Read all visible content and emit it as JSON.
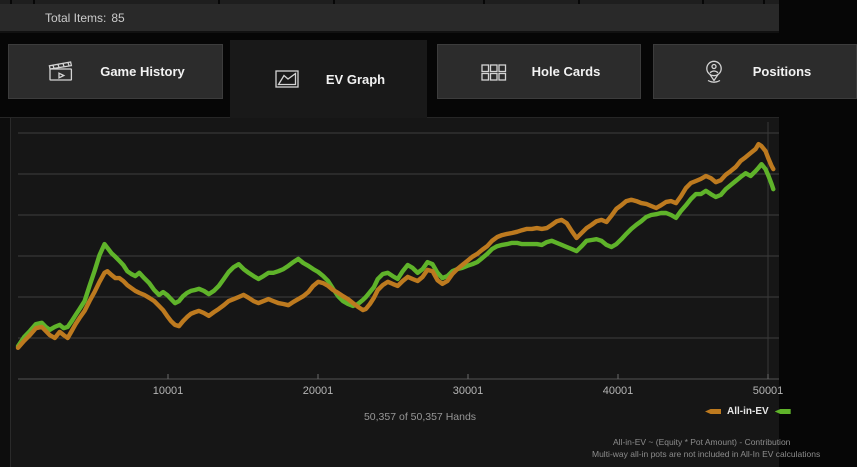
{
  "header": {
    "total_items_label": "Total Items:",
    "total_items_value": "85"
  },
  "tabs": [
    {
      "label": "Game History",
      "icon": "clapperboard-icon",
      "active": false
    },
    {
      "label": "EV Graph",
      "icon": "line-chart-icon",
      "active": true
    },
    {
      "label": "Hole Cards",
      "icon": "cards-grid-icon",
      "active": false
    },
    {
      "label": "Positions",
      "icon": "person-pin-icon",
      "active": false
    }
  ],
  "chart_data": {
    "type": "line",
    "title": "",
    "xlabel": "hands",
    "ylabel": "",
    "x_axis": {
      "ticks": [
        10001,
        20001,
        30001,
        40001,
        50001
      ],
      "max_hand": 50357
    },
    "y_axis": {
      "tick_labels_visible": false,
      "gridlines": 6,
      "units": "relative (1 = one gridline above baseline)"
    },
    "legend_position": "bottom-right",
    "x": [
      1,
      398,
      795,
      1193,
      1590,
      1856,
      2121,
      2452,
      2783,
      3049,
      3314,
      3579,
      3844,
      4109,
      4440,
      4771,
      5103,
      5434,
      5765,
      5964,
      6229,
      6494,
      6759,
      7024,
      7290,
      7555,
      7820,
      8085,
      8416,
      8748,
      9079,
      9410,
      9676,
      9941,
      10206,
      10471,
      10736,
      11001,
      11266,
      11531,
      11796,
      12061,
      12393,
      12724,
      13055,
      13387,
      13718,
      14049,
      14381,
      14712,
      15043,
      15375,
      15706,
      16037,
      16369,
      16700,
      17031,
      17363,
      17694,
      18025,
      18357,
      18688,
      19019,
      19351,
      19682,
      20013,
      20345,
      20676,
      21007,
      21339,
      21670,
      22002,
      22333,
      22664,
      22996,
      23195,
      23460,
      23725,
      23990,
      24321,
      24652,
      24984,
      25315,
      25646,
      25978,
      26309,
      26640,
      26972,
      27303,
      27634,
      27966,
      28297,
      28628,
      28960,
      29291,
      29622,
      29954,
      30285,
      30617,
      30948,
      31279,
      31611,
      31942,
      32273,
      32605,
      32936,
      33267,
      33599,
      33930,
      34261,
      34593,
      34924,
      35255,
      35587,
      35918,
      36249,
      36581,
      36912,
      37243,
      37575,
      37906,
      38238,
      38569,
      38900,
      39232,
      39563,
      39894,
      40226,
      40557,
      40888,
      41220,
      41551,
      41882,
      42214,
      42545,
      42876,
      43208,
      43539,
      43870,
      44202,
      44533,
      44864,
      45196,
      45527,
      45858,
      46190,
      46521,
      46853,
      47184,
      47515,
      47847,
      48178,
      48509,
      48841,
      49172,
      49371,
      49570,
      49835,
      50034,
      50233,
      50357
    ],
    "series": [
      {
        "name": "All-in-EV",
        "color": "#bd7a1f",
        "values": [
          0.76,
          0.93,
          1.07,
          1.24,
          1.27,
          1.17,
          1.07,
          1.0,
          1.15,
          1.07,
          1.0,
          1.17,
          1.34,
          1.49,
          1.66,
          1.9,
          2.12,
          2.37,
          2.59,
          2.63,
          2.54,
          2.46,
          2.46,
          2.39,
          2.29,
          2.22,
          2.15,
          2.1,
          2.05,
          1.98,
          1.9,
          1.78,
          1.68,
          1.54,
          1.41,
          1.32,
          1.29,
          1.41,
          1.51,
          1.59,
          1.63,
          1.66,
          1.61,
          1.54,
          1.63,
          1.71,
          1.8,
          1.9,
          1.95,
          2.0,
          2.05,
          1.98,
          1.9,
          1.85,
          1.9,
          1.95,
          1.9,
          1.85,
          1.83,
          1.8,
          1.88,
          1.95,
          2.02,
          2.12,
          2.27,
          2.37,
          2.34,
          2.27,
          2.17,
          2.1,
          2.02,
          1.95,
          1.85,
          1.76,
          1.68,
          1.71,
          1.83,
          1.98,
          2.17,
          2.29,
          2.37,
          2.32,
          2.27,
          2.39,
          2.49,
          2.44,
          2.39,
          2.49,
          2.66,
          2.63,
          2.41,
          2.32,
          2.39,
          2.56,
          2.68,
          2.78,
          2.88,
          2.98,
          3.05,
          3.15,
          3.24,
          3.37,
          3.46,
          3.51,
          3.54,
          3.56,
          3.59,
          3.63,
          3.66,
          3.66,
          3.68,
          3.66,
          3.68,
          3.76,
          3.85,
          3.88,
          3.8,
          3.61,
          3.44,
          3.56,
          3.68,
          3.76,
          3.85,
          3.88,
          3.83,
          3.98,
          4.15,
          4.24,
          4.34,
          4.37,
          4.34,
          4.29,
          4.27,
          4.22,
          4.17,
          4.24,
          4.32,
          4.34,
          4.29,
          4.46,
          4.66,
          4.78,
          4.83,
          4.88,
          4.95,
          4.9,
          4.8,
          4.85,
          4.98,
          5.07,
          5.17,
          5.32,
          5.41,
          5.51,
          5.61,
          5.73,
          5.68,
          5.56,
          5.37,
          5.2,
          5.12
        ]
      },
      {
        "name": "",
        "color": "#5fb32a",
        "values": [
          0.8,
          1.02,
          1.17,
          1.34,
          1.37,
          1.27,
          1.2,
          1.27,
          1.32,
          1.24,
          1.27,
          1.41,
          1.56,
          1.71,
          1.9,
          2.27,
          2.63,
          3.02,
          3.29,
          3.2,
          3.07,
          2.98,
          2.88,
          2.78,
          2.63,
          2.56,
          2.51,
          2.59,
          2.46,
          2.34,
          2.17,
          2.05,
          2.12,
          2.05,
          1.95,
          1.85,
          1.9,
          2.02,
          2.1,
          2.15,
          2.17,
          2.2,
          2.15,
          2.07,
          2.15,
          2.27,
          2.44,
          2.61,
          2.73,
          2.8,
          2.68,
          2.59,
          2.51,
          2.44,
          2.51,
          2.59,
          2.59,
          2.63,
          2.68,
          2.76,
          2.85,
          2.93,
          2.83,
          2.76,
          2.68,
          2.61,
          2.51,
          2.39,
          2.2,
          2.02,
          1.9,
          1.83,
          1.78,
          1.83,
          1.93,
          2.0,
          2.12,
          2.24,
          2.44,
          2.56,
          2.59,
          2.51,
          2.44,
          2.63,
          2.78,
          2.71,
          2.59,
          2.68,
          2.85,
          2.8,
          2.59,
          2.46,
          2.51,
          2.63,
          2.68,
          2.71,
          2.76,
          2.8,
          2.85,
          2.95,
          3.05,
          3.17,
          3.24,
          3.27,
          3.29,
          3.32,
          3.32,
          3.29,
          3.29,
          3.29,
          3.29,
          3.27,
          3.34,
          3.37,
          3.32,
          3.27,
          3.22,
          3.17,
          3.12,
          3.24,
          3.37,
          3.39,
          3.41,
          3.37,
          3.27,
          3.22,
          3.29,
          3.41,
          3.54,
          3.66,
          3.76,
          3.85,
          3.95,
          4.0,
          4.02,
          4.05,
          4.05,
          4.0,
          3.93,
          4.1,
          4.24,
          4.39,
          4.51,
          4.51,
          4.59,
          4.51,
          4.44,
          4.49,
          4.63,
          4.73,
          4.83,
          4.93,
          5.02,
          4.95,
          5.07,
          5.15,
          5.24,
          5.12,
          4.95,
          4.76,
          4.63
        ]
      }
    ]
  },
  "footer": {
    "hands_summary": "50,357 of 50,357 Hands",
    "legend": [
      {
        "label": "All-in-EV",
        "color": "#bd7a1f"
      },
      {
        "label": "",
        "color": "#5fb32a"
      }
    ],
    "note_line1": "All-in-EV ~ (Equity * Pot Amount) - Contribution",
    "note_line2": "Multi-way all-in pots are not included in All-In EV calculations"
  }
}
